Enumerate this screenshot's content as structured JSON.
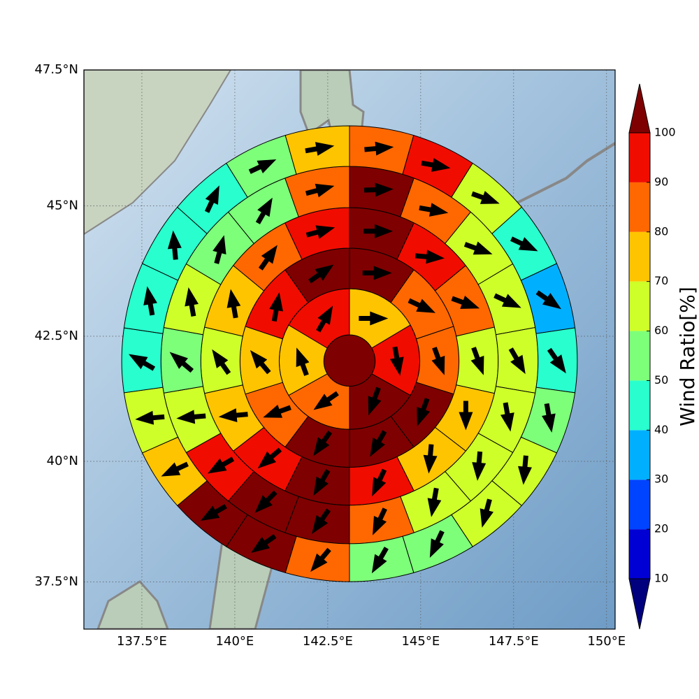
{
  "chart_data": {
    "type": "polar_sector_map",
    "projection": "mercator",
    "xlim": [
      135.94,
      150.23
    ],
    "ylim": [
      36.5,
      47.5
    ],
    "xticks": [
      {
        "value": 137.5,
        "label": "137.5°E"
      },
      {
        "value": 140,
        "label": "140°E"
      },
      {
        "value": 142.5,
        "label": "142.5°E"
      },
      {
        "value": 145,
        "label": "145°E"
      },
      {
        "value": 147.5,
        "label": "147.5°E"
      },
      {
        "value": 150,
        "label": "150°E"
      }
    ],
    "yticks": [
      {
        "value": 37.5,
        "label": "37.5°N"
      },
      {
        "value": 40,
        "label": "40°N"
      },
      {
        "value": 42.5,
        "label": "42.5°N"
      },
      {
        "value": 45,
        "label": "45°N"
      },
      {
        "value": 47.5,
        "label": "47.5°N"
      }
    ],
    "grid": true,
    "center_value": 105,
    "rings": [
      {
        "values": [
          75,
          95,
          105,
          85,
          75,
          95
        ],
        "directions": [
          90,
          170,
          200,
          235,
          340,
          30
        ]
      },
      {
        "values": [
          105,
          85,
          85,
          105,
          105,
          105,
          85,
          75,
          95,
          105
        ],
        "directions": [
          90,
          115,
          160,
          200,
          210,
          215,
          250,
          320,
          10,
          55
        ]
      },
      {
        "values": [
          105,
          95,
          85,
          65,
          75,
          75,
          95,
          105,
          95,
          75,
          65,
          75,
          85,
          95
        ],
        "directions": [
          90,
          95,
          110,
          160,
          180,
          185,
          205,
          210,
          230,
          265,
          325,
          350,
          35,
          75
        ]
      },
      {
        "values": [
          105,
          85,
          65,
          65,
          65,
          65,
          65,
          65,
          85,
          105,
          105,
          95,
          65,
          55,
          65,
          55,
          55,
          85
        ],
        "directions": [
          88,
          100,
          110,
          115,
          150,
          170,
          185,
          190,
          205,
          215,
          225,
          240,
          265,
          310,
          350,
          15,
          30,
          75
        ]
      },
      {
        "values": [
          85,
          95,
          65,
          45,
          35,
          45,
          55,
          65,
          65,
          55,
          55,
          85,
          105,
          105,
          75,
          65,
          45,
          45,
          45,
          45,
          55,
          75
        ],
        "directions": [
          85,
          100,
          110,
          115,
          125,
          145,
          170,
          185,
          195,
          205,
          210,
          220,
          235,
          240,
          245,
          265,
          300,
          350,
          355,
          25,
          65,
          80
        ]
      }
    ],
    "colorbar": {
      "label": "Wind Ratio[%]",
      "levels": [
        10,
        20,
        30,
        40,
        50,
        60,
        70,
        80,
        90,
        100
      ],
      "colors": [
        "#00007f",
        "#0000d4",
        "#0044ff",
        "#00b0ff",
        "#29ffce",
        "#7dff7a",
        "#ceff29",
        "#ffc400",
        "#ff6800",
        "#f10c00",
        "#7f0000"
      ]
    }
  }
}
